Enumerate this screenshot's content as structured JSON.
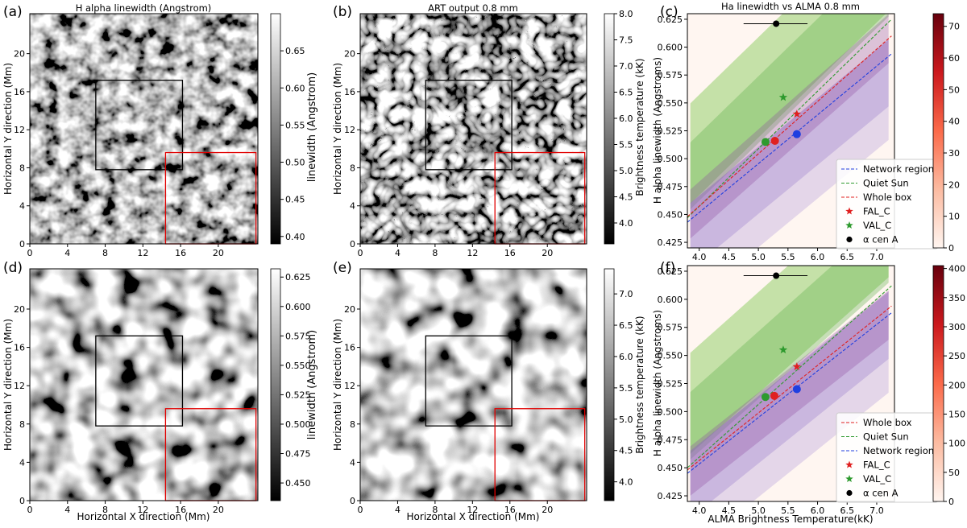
{
  "panel_labels": [
    "(a)",
    "(b)",
    "(c)",
    "(d)",
    "(e)",
    "(f)"
  ],
  "colors": {
    "network": "#1f3fe0",
    "quiet": "#2e9a2e",
    "whole": "#e02020",
    "point_black": "#000000"
  },
  "chart_data": [
    {
      "type": "heatmap",
      "panel": "(a)",
      "title": "H alpha linewidth (Angstrom)",
      "xlabel": "",
      "ylabel": "Horizontal Y direction (Mm)",
      "xticks": [
        "0",
        "4",
        "8",
        "12",
        "16",
        "20"
      ],
      "yticks": [
        "0",
        "4",
        "8",
        "12",
        "16",
        "20"
      ],
      "colorbar": {
        "label": "linewidth (Angstrom)",
        "ticks": [
          "0.40",
          "0.45",
          "0.50",
          "0.55",
          "0.60",
          "0.65"
        ],
        "range": [
          0.39,
          0.7
        ]
      },
      "boxes": [
        {
          "color": "black",
          "x": [
            7,
            16.2
          ],
          "y": [
            7.8,
            17.2
          ]
        },
        {
          "color": "red",
          "x": [
            14.4,
            24
          ],
          "y": [
            0,
            9.6
          ]
        }
      ]
    },
    {
      "type": "heatmap",
      "panel": "(b)",
      "title": "ART output 0.8 mm",
      "xlabel": "",
      "ylabel": "Horizontal Y direction (Mm)",
      "xticks": [
        "0",
        "4",
        "8",
        "12",
        "16",
        "20"
      ],
      "yticks": [
        "0",
        "4",
        "8",
        "12",
        "16",
        "20"
      ],
      "colorbar": {
        "label": "Brightness temperature (kK)",
        "ticks": [
          "4.0",
          "4.5",
          "5.0",
          "5.5",
          "6.0",
          "6.5",
          "7.0",
          "7.5",
          "8.0"
        ],
        "range": [
          3.6,
          8.0
        ]
      },
      "boxes": [
        {
          "color": "black",
          "x": [
            7,
            16.2
          ],
          "y": [
            7.8,
            17.2
          ]
        },
        {
          "color": "red",
          "x": [
            14.4,
            24
          ],
          "y": [
            0,
            9.6
          ]
        }
      ]
    },
    {
      "type": "scatter",
      "panel": "(c)",
      "title": "Ha linewidth vs ALMA 0.8 mm",
      "xlabel": "",
      "ylabel": "H alpha linewidth (Angstroms)",
      "xlim": [
        3.8,
        7.3
      ],
      "ylim": [
        0.42,
        0.63
      ],
      "xticks": [
        "4.0",
        "4.5",
        "5.0",
        "5.5",
        "6.0",
        "6.5",
        "7.0"
      ],
      "yticks": [
        "0.425",
        "0.450",
        "0.475",
        "0.500",
        "0.525",
        "0.550",
        "0.575",
        "0.600",
        "0.625"
      ],
      "colorbar": {
        "ticks": [
          "0",
          "10",
          "20",
          "30",
          "40",
          "50",
          "60",
          "70"
        ],
        "range": [
          0,
          74
        ]
      },
      "fits": [
        {
          "name": "Network region",
          "color": "#1f3fe0",
          "x": [
            3.8,
            7.25
          ],
          "y": [
            0.443,
            0.594
          ]
        },
        {
          "name": "Quiet Sun",
          "color": "#2e9a2e",
          "x": [
            3.8,
            7.25
          ],
          "y": [
            0.447,
            0.625
          ]
        },
        {
          "name": "Whole box",
          "color": "#e02020",
          "x": [
            3.8,
            7.25
          ],
          "y": [
            0.448,
            0.61
          ]
        }
      ],
      "points": [
        {
          "name": "FAL_C",
          "marker": "star",
          "color": "#e02020",
          "x": 5.65,
          "y": 0.54
        },
        {
          "name": "VAL_C",
          "marker": "star",
          "color": "#2e9a2e",
          "x": 5.42,
          "y": 0.555
        },
        {
          "name": "α cen A",
          "marker": "dot",
          "color": "#000000",
          "x": 5.3,
          "y": 0.621,
          "xerr": [
            4.75,
            5.83
          ]
        },
        {
          "name": "",
          "marker": "dot",
          "color": "#2e9a2e",
          "x": 5.12,
          "y": 0.515
        },
        {
          "name": "",
          "marker": "dot",
          "color": "#e02020",
          "x": 5.28,
          "y": 0.516
        },
        {
          "name": "",
          "marker": "dot",
          "color": "#1f3fe0",
          "x": 5.65,
          "y": 0.522
        }
      ],
      "legend": [
        "Network region",
        "Quiet Sun",
        "Whole box",
        "FAL_C",
        "VAL_C",
        "α cen A"
      ],
      "legend_position": "bottom-right"
    },
    {
      "type": "heatmap",
      "panel": "(d)",
      "title": "",
      "xlabel": "Horizontal X direction (Mm)",
      "ylabel": "Horizontal Y direction (Mm)",
      "xticks": [
        "0",
        "4",
        "8",
        "12",
        "16",
        "20"
      ],
      "yticks": [
        "0",
        "4",
        "8",
        "12",
        "16",
        "20"
      ],
      "colorbar": {
        "label": "linewidth (Angstrom)",
        "ticks": [
          "0.450",
          "0.475",
          "0.500",
          "0.525",
          "0.550",
          "0.575",
          "0.600",
          "0.625"
        ],
        "range": [
          0.435,
          0.632
        ]
      },
      "boxes": [
        {
          "color": "black",
          "x": [
            7,
            16.2
          ],
          "y": [
            7.8,
            17.2
          ]
        },
        {
          "color": "red",
          "x": [
            14.4,
            24
          ],
          "y": [
            0,
            9.6
          ]
        }
      ]
    },
    {
      "type": "heatmap",
      "panel": "(e)",
      "title": "",
      "xlabel": "Horizontal X direction (Mm)",
      "ylabel": "Horizontal Y direction (Mm)",
      "xticks": [
        "0",
        "4",
        "8",
        "12",
        "16",
        "20"
      ],
      "yticks": [
        "0",
        "4",
        "8",
        "12",
        "16",
        "20"
      ],
      "colorbar": {
        "label": "Brightness temperature (kK)",
        "ticks": [
          "4.0",
          "4.5",
          "5.0",
          "5.5",
          "6.0",
          "6.5",
          "7.0"
        ],
        "range": [
          3.7,
          7.4
        ]
      },
      "boxes": [
        {
          "color": "black",
          "x": [
            7,
            16.2
          ],
          "y": [
            7.8,
            17.2
          ]
        },
        {
          "color": "red",
          "x": [
            14.4,
            24
          ],
          "y": [
            0,
            9.6
          ]
        }
      ]
    },
    {
      "type": "scatter",
      "panel": "(f)",
      "title": "",
      "xlabel": "ALMA Brightness Temperature(kK)",
      "ylabel": "H alpha linewidth (Angstroms)",
      "xlim": [
        3.8,
        7.3
      ],
      "ylim": [
        0.42,
        0.63
      ],
      "xticks": [
        "4.0",
        "4.5",
        "5.0",
        "5.5",
        "6.0",
        "6.5",
        "7.0"
      ],
      "yticks": [
        "0.425",
        "0.450",
        "0.475",
        "0.500",
        "0.525",
        "0.550",
        "0.575",
        "0.600",
        "0.625"
      ],
      "colorbar": {
        "ticks": [
          "0",
          "50",
          "100",
          "150",
          "200",
          "250",
          "300",
          "350",
          "400"
        ],
        "range": [
          0,
          405
        ]
      },
      "fits": [
        {
          "name": "Whole box",
          "color": "#e02020",
          "x": [
            3.8,
            7.25
          ],
          "y": [
            0.448,
            0.594
          ]
        },
        {
          "name": "Quiet Sun",
          "color": "#2e9a2e",
          "x": [
            3.8,
            7.25
          ],
          "y": [
            0.45,
            0.612
          ]
        },
        {
          "name": "Network region",
          "color": "#1f3fe0",
          "x": [
            3.8,
            7.25
          ],
          "y": [
            0.445,
            0.588
          ]
        }
      ],
      "points": [
        {
          "name": "FAL_C",
          "marker": "star",
          "color": "#e02020",
          "x": 5.65,
          "y": 0.54
        },
        {
          "name": "VAL_C",
          "marker": "star",
          "color": "#2e9a2e",
          "x": 5.42,
          "y": 0.555
        },
        {
          "name": "α cen A",
          "marker": "dot",
          "color": "#000000",
          "x": 5.3,
          "y": 0.621,
          "xerr": [
            4.75,
            5.83
          ]
        },
        {
          "name": "",
          "marker": "dot",
          "color": "#2e9a2e",
          "x": 5.12,
          "y": 0.513
        },
        {
          "name": "",
          "marker": "dot",
          "color": "#e02020",
          "x": 5.27,
          "y": 0.514
        },
        {
          "name": "",
          "marker": "dot",
          "color": "#1f3fe0",
          "x": 5.65,
          "y": 0.52
        }
      ],
      "legend": [
        "Whole box",
        "Quiet Sun",
        "Network region",
        "FAL_C",
        "VAL_C",
        "α cen A"
      ],
      "legend_position": "bottom-right"
    }
  ]
}
